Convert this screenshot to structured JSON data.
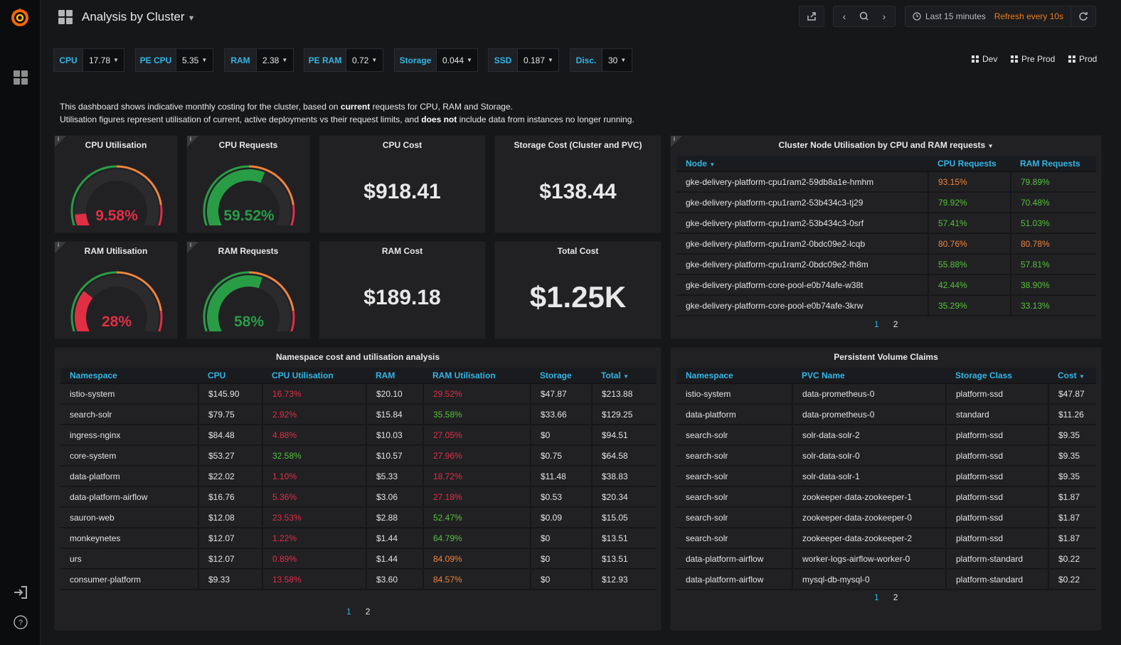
{
  "header": {
    "title": "Analysis by Cluster",
    "time_range": "Last 15 minutes",
    "refresh": "Refresh every 10s"
  },
  "variables": [
    {
      "label": "CPU",
      "value": "17.78"
    },
    {
      "label": "PE CPU",
      "value": "5.35"
    },
    {
      "label": "RAM",
      "value": "2.38"
    },
    {
      "label": "PE RAM",
      "value": "0.72"
    },
    {
      "label": "Storage",
      "value": "0.044"
    },
    {
      "label": "SSD",
      "value": "0.187"
    },
    {
      "label": "Disc.",
      "value": "30"
    }
  ],
  "env_links": [
    "Dev",
    "Pre Prod",
    "Prod"
  ],
  "description": {
    "line1_pre": "This dashboard shows indicative monthly costing for the cluster, based on ",
    "line1_bold": "current",
    "line1_post": " requests for CPU, RAM and Storage.",
    "line2_pre": "Utilisation figures represent utilisation of current, active deployments vs their request limits, and ",
    "line2_bold": "does not",
    "line2_post": " include data from instances no longer running."
  },
  "gauges": {
    "cpu_util": {
      "title": "CPU Utilisation",
      "value": "9.58%",
      "fraction": 0.0958,
      "color": "#e02f44"
    },
    "cpu_req": {
      "title": "CPU Requests",
      "value": "59.52%",
      "fraction": 0.5952,
      "color": "#299c46"
    },
    "ram_util": {
      "title": "RAM Utilisation",
      "value": "28%",
      "fraction": 0.28,
      "color": "#e02f44"
    },
    "ram_req": {
      "title": "RAM Requests",
      "value": "58%",
      "fraction": 0.58,
      "color": "#299c46"
    }
  },
  "stats": {
    "cpu_cost": {
      "title": "CPU Cost",
      "value": "$918.41"
    },
    "storage_cost": {
      "title": "Storage Cost (Cluster and PVC)",
      "value": "$138.44"
    },
    "ram_cost": {
      "title": "RAM Cost",
      "value": "$189.18"
    },
    "total_cost": {
      "title": "Total Cost",
      "value": "$1.25K"
    }
  },
  "node_table": {
    "title": "Cluster Node Utilisation by CPU and RAM requests",
    "headers": [
      "Node",
      "CPU Requests",
      "RAM Requests"
    ],
    "rows": [
      [
        "gke-delivery-platform-cpu1ram2-59db8a1e-hmhm",
        "93.15%",
        "79.89%"
      ],
      [
        "gke-delivery-platform-cpu1ram2-53b434c3-tj29",
        "79.92%",
        "70.48%"
      ],
      [
        "gke-delivery-platform-cpu1ram2-53b434c3-0srf",
        "57.41%",
        "51.03%"
      ],
      [
        "gke-delivery-platform-cpu1ram2-0bdc09e2-lcqb",
        "80.76%",
        "80.78%"
      ],
      [
        "gke-delivery-platform-cpu1ram2-0bdc09e2-fh8m",
        "55.88%",
        "57.81%"
      ],
      [
        "gke-delivery-platform-core-pool-e0b74afe-w38t",
        "42.44%",
        "38.90%"
      ],
      [
        "gke-delivery-platform-core-pool-e0b74afe-3krw",
        "35.29%",
        "33.13%"
      ]
    ],
    "row_colors": [
      [
        "orange",
        "lgreen"
      ],
      [
        "lgreen",
        "lgreen"
      ],
      [
        "lgreen",
        "lgreen"
      ],
      [
        "orange",
        "orange"
      ],
      [
        "lgreen",
        "lgreen"
      ],
      [
        "lgreen",
        "lgreen"
      ],
      [
        "lgreen",
        "lgreen"
      ]
    ],
    "pages": [
      "1",
      "2"
    ]
  },
  "ns_table": {
    "title": "Namespace cost and utilisation analysis",
    "headers": [
      "Namespace",
      "CPU",
      "CPU Utilisation",
      "RAM",
      "RAM Utilisation",
      "Storage",
      "Total"
    ],
    "rows": [
      [
        "istio-system",
        "$145.90",
        "16.73%",
        "$20.10",
        "29.52%",
        "$47.87",
        "$213.88"
      ],
      [
        "search-solr",
        "$79.75",
        "2.92%",
        "$15.84",
        "35.58%",
        "$33.66",
        "$129.25"
      ],
      [
        "ingress-nginx",
        "$84.48",
        "4.88%",
        "$10.03",
        "27.05%",
        "$0",
        "$94.51"
      ],
      [
        "core-system",
        "$53.27",
        "32.58%",
        "$10.57",
        "27.96%",
        "$0.75",
        "$64.58"
      ],
      [
        "data-platform",
        "$22.02",
        "1.10%",
        "$5.33",
        "18.72%",
        "$11.48",
        "$38.83"
      ],
      [
        "data-platform-airflow",
        "$16.76",
        "5.36%",
        "$3.06",
        "27.18%",
        "$0.53",
        "$20.34"
      ],
      [
        "sauron-web",
        "$12.08",
        "23.53%",
        "$2.88",
        "52.47%",
        "$0.09",
        "$15.05"
      ],
      [
        "monkeynetes",
        "$12.07",
        "1.22%",
        "$1.44",
        "64.79%",
        "$0",
        "$13.51"
      ],
      [
        "urs",
        "$12.07",
        "0.89%",
        "$1.44",
        "84.09%",
        "$0",
        "$13.51"
      ],
      [
        "consumer-platform",
        "$9.33",
        "13.58%",
        "$3.60",
        "84.57%",
        "$0",
        "$12.93"
      ]
    ],
    "util_colors": [
      [
        "red",
        "red"
      ],
      [
        "red",
        "lgreen"
      ],
      [
        "red",
        "red"
      ],
      [
        "lgreen",
        "red"
      ],
      [
        "red",
        "red"
      ],
      [
        "red",
        "red"
      ],
      [
        "red",
        "lgreen"
      ],
      [
        "red",
        "lgreen"
      ],
      [
        "red",
        "orange"
      ],
      [
        "red",
        "orange"
      ]
    ],
    "pages": [
      "1",
      "2"
    ]
  },
  "pvc_table": {
    "title": "Persistent Volume Claims",
    "headers": [
      "Namespace",
      "PVC Name",
      "Storage Class",
      "Cost"
    ],
    "rows": [
      [
        "istio-system",
        "data-prometheus-0",
        "platform-ssd",
        "$47.87"
      ],
      [
        "data-platform",
        "data-prometheus-0",
        "standard",
        "$11.26"
      ],
      [
        "search-solr",
        "solr-data-solr-2",
        "platform-ssd",
        "$9.35"
      ],
      [
        "search-solr",
        "solr-data-solr-0",
        "platform-ssd",
        "$9.35"
      ],
      [
        "search-solr",
        "solr-data-solr-1",
        "platform-ssd",
        "$9.35"
      ],
      [
        "search-solr",
        "zookeeper-data-zookeeper-1",
        "platform-ssd",
        "$1.87"
      ],
      [
        "search-solr",
        "zookeeper-data-zookeeper-0",
        "platform-ssd",
        "$1.87"
      ],
      [
        "search-solr",
        "zookeeper-data-zookeeper-2",
        "platform-ssd",
        "$1.87"
      ],
      [
        "data-platform-airflow",
        "worker-logs-airflow-worker-0",
        "platform-standard",
        "$0.22"
      ],
      [
        "data-platform-airflow",
        "mysql-db-mysql-0",
        "platform-standard",
        "$0.22"
      ]
    ],
    "pages": [
      "1",
      "2"
    ]
  }
}
